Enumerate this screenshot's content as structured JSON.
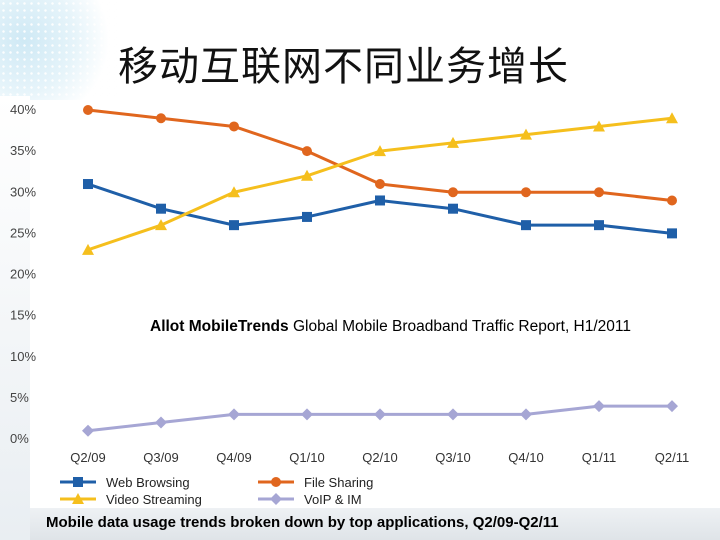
{
  "slide": {
    "title": "移动互联网不同业务增长"
  },
  "annotation": {
    "bold": "Allot MobileTrends",
    "rest": " Global Mobile Broadband Traffic Report, H1/2011"
  },
  "caption": "Mobile data usage trends broken down by top applications, Q2/09-Q2/11",
  "chart_data": {
    "type": "line",
    "categories": [
      "Q2/09",
      "Q3/09",
      "Q4/09",
      "Q1/10",
      "Q2/10",
      "Q3/10",
      "Q4/10",
      "Q1/11",
      "Q2/11"
    ],
    "yticks": [
      "0%",
      "5%",
      "10%",
      "15%",
      "20%",
      "25%",
      "30%",
      "35%",
      "40%"
    ],
    "ylim": [
      0,
      40
    ],
    "grid": false,
    "legend_position": "bottom",
    "series": [
      {
        "name": "Web Browsing",
        "color": "#1f5fa8",
        "marker": "square",
        "values": [
          31,
          28,
          26,
          27,
          29,
          28,
          26,
          26,
          25
        ]
      },
      {
        "name": "File Sharing",
        "color": "#e0661e",
        "marker": "circle",
        "values": [
          40,
          39,
          38,
          35,
          31,
          30,
          30,
          30,
          29
        ]
      },
      {
        "name": "Video Streaming",
        "color": "#f5bf1d",
        "marker": "triangle",
        "values": [
          23,
          26,
          30,
          32,
          35,
          36,
          37,
          38,
          39
        ]
      },
      {
        "name": "VoIP & IM",
        "color": "#a6a6d4",
        "marker": "diamond",
        "values": [
          1,
          2,
          3,
          3,
          3,
          3,
          3,
          4,
          4
        ]
      }
    ]
  }
}
